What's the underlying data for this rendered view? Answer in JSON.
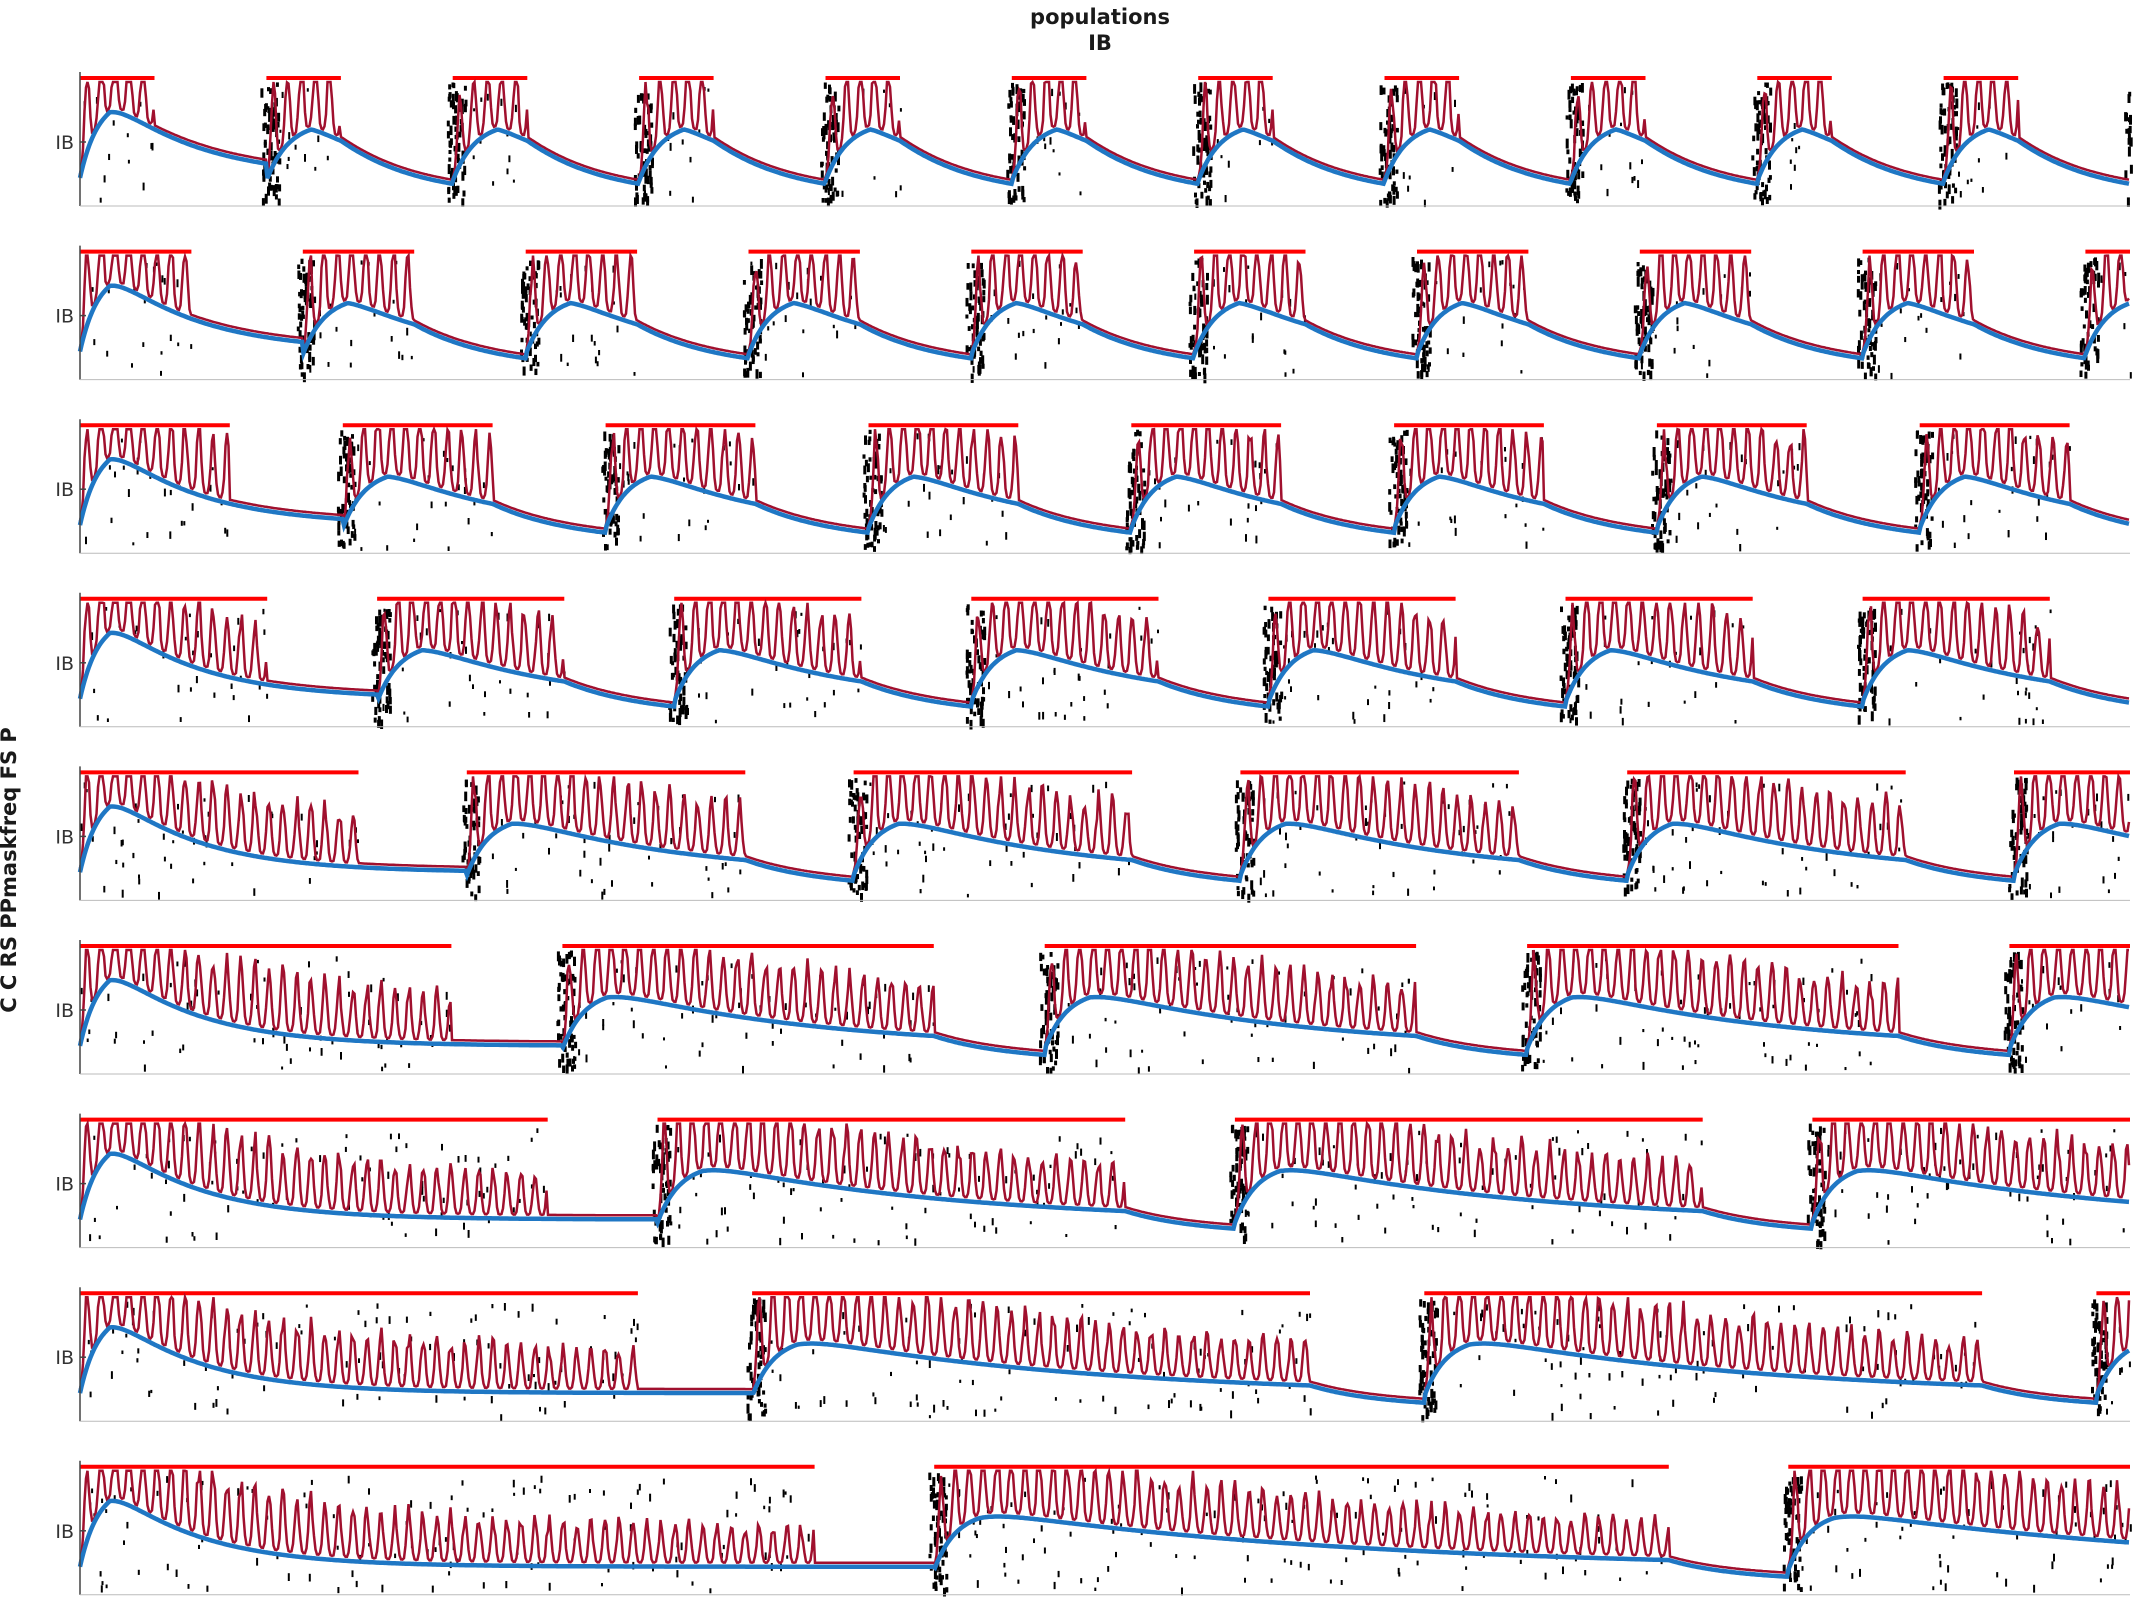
{
  "figure": {
    "title_line1": "populations",
    "title_line2": "IB",
    "left_label": "C C RS PPmaskfreq FS P"
  },
  "chart_data": {
    "type": "line",
    "title": "populations IB",
    "ylabel": "C C RS PPmaskfreq FS P",
    "grid": false,
    "ytick_label": "IB",
    "colors": {
      "lfp_trace": "#a0102e",
      "smoothed_trace": "#1f77c4",
      "mask_bar": "#ff0000",
      "raster": "#000000",
      "axis": "#444444"
    },
    "panels": [
      {
        "row": 1,
        "mask_periods": 11,
        "mask_on_fraction": 0.4
      },
      {
        "row": 2,
        "mask_periods": 9.2,
        "mask_on_fraction": 0.5
      },
      {
        "row": 3,
        "mask_periods": 7.8,
        "mask_on_fraction": 0.57
      },
      {
        "row": 4,
        "mask_periods": 6.9,
        "mask_on_fraction": 0.63
      },
      {
        "row": 5,
        "mask_periods": 5.3,
        "mask_on_fraction": 0.72
      },
      {
        "row": 6,
        "mask_periods": 4.25,
        "mask_on_fraction": 0.77
      },
      {
        "row": 7,
        "mask_periods": 3.55,
        "mask_on_fraction": 0.81
      },
      {
        "row": 8,
        "mask_periods": 3.05,
        "mask_on_fraction": 0.83
      },
      {
        "row": 9,
        "mask_periods": 2.4,
        "mask_on_fraction": 0.86
      }
    ]
  }
}
